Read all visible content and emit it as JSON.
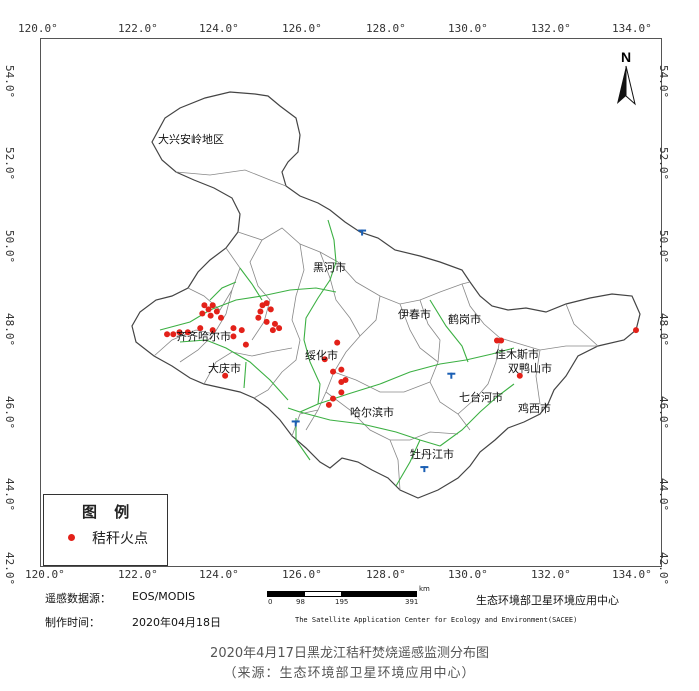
{
  "map": {
    "lon_ticks": [
      "120.0°",
      "122.0°",
      "124.0°",
      "126.0°",
      "128.0°",
      "130.0°",
      "132.0°",
      "134.0°"
    ],
    "lat_ticks": [
      "54.0°",
      "52.0°",
      "50.0°",
      "48.0°",
      "46.0°",
      "44.0°",
      "42.0°"
    ],
    "north_label": "N",
    "places": [
      "大兴安岭地区",
      "黑河市",
      "伊春市",
      "鹤岗市",
      "齐齐哈尔市",
      "绥化市",
      "佳木斯市",
      "双鸭山市",
      "大庆市",
      "七台河市",
      "哈尔滨市",
      "鸡西市",
      "牡丹江市"
    ],
    "fire_color": "#e32119",
    "border_color": "#777777",
    "road_color": "#3cb043",
    "fire_points_lonlat": [
      [
        122.7,
        47.8
      ],
      [
        122.85,
        47.8
      ],
      [
        123.0,
        47.85
      ],
      [
        123.2,
        47.85
      ],
      [
        123.55,
        48.3
      ],
      [
        123.7,
        48.4
      ],
      [
        123.8,
        48.5
      ],
      [
        123.6,
        48.5
      ],
      [
        123.9,
        48.35
      ],
      [
        124.0,
        48.2
      ],
      [
        123.75,
        48.25
      ],
      [
        123.5,
        47.95
      ],
      [
        123.8,
        47.9
      ],
      [
        124.3,
        47.95
      ],
      [
        124.5,
        47.9
      ],
      [
        124.3,
        47.75
      ],
      [
        124.95,
        48.35
      ],
      [
        125.0,
        48.5
      ],
      [
        125.1,
        48.55
      ],
      [
        125.2,
        48.4
      ],
      [
        124.9,
        48.2
      ],
      [
        125.1,
        48.1
      ],
      [
        125.3,
        48.05
      ],
      [
        125.25,
        47.9
      ],
      [
        125.4,
        47.95
      ],
      [
        124.6,
        47.55
      ],
      [
        124.1,
        46.8
      ],
      [
        126.8,
        47.6
      ],
      [
        126.5,
        47.2
      ],
      [
        126.9,
        46.95
      ],
      [
        126.7,
        46.9
      ],
      [
        127.0,
        46.7
      ],
      [
        126.9,
        46.65
      ],
      [
        126.7,
        46.25
      ],
      [
        126.6,
        46.1
      ],
      [
        126.9,
        46.4
      ],
      [
        130.65,
        47.65
      ],
      [
        130.75,
        47.65
      ],
      [
        131.2,
        46.8
      ],
      [
        134.0,
        47.9
      ]
    ],
    "airports_lonlat": [
      [
        127.4,
        50.3
      ],
      [
        125.8,
        45.7
      ],
      [
        129.55,
        46.85
      ],
      [
        128.9,
        44.6
      ]
    ]
  },
  "legend": {
    "title": "图 例",
    "item": "秸秆火点"
  },
  "meta": {
    "source_label": "遥感数据源：",
    "source_value": "EOS/MODIS",
    "date_label": "制作时间：",
    "date_value": "2020年04月18日",
    "scale_unit": "km",
    "scale_ticks": [
      "0",
      "98",
      "195",
      "391"
    ],
    "agency_cn": "生态环境部卫星环境应用中心",
    "agency_en": "The Satellite Application Center for Ecology and Environment(SACEE)"
  },
  "caption": {
    "title": "2020年4月17日黑龙江秸秆焚烧遥感监测分布图",
    "source": "（来源：生态环境部卫星环境应用中心）"
  }
}
